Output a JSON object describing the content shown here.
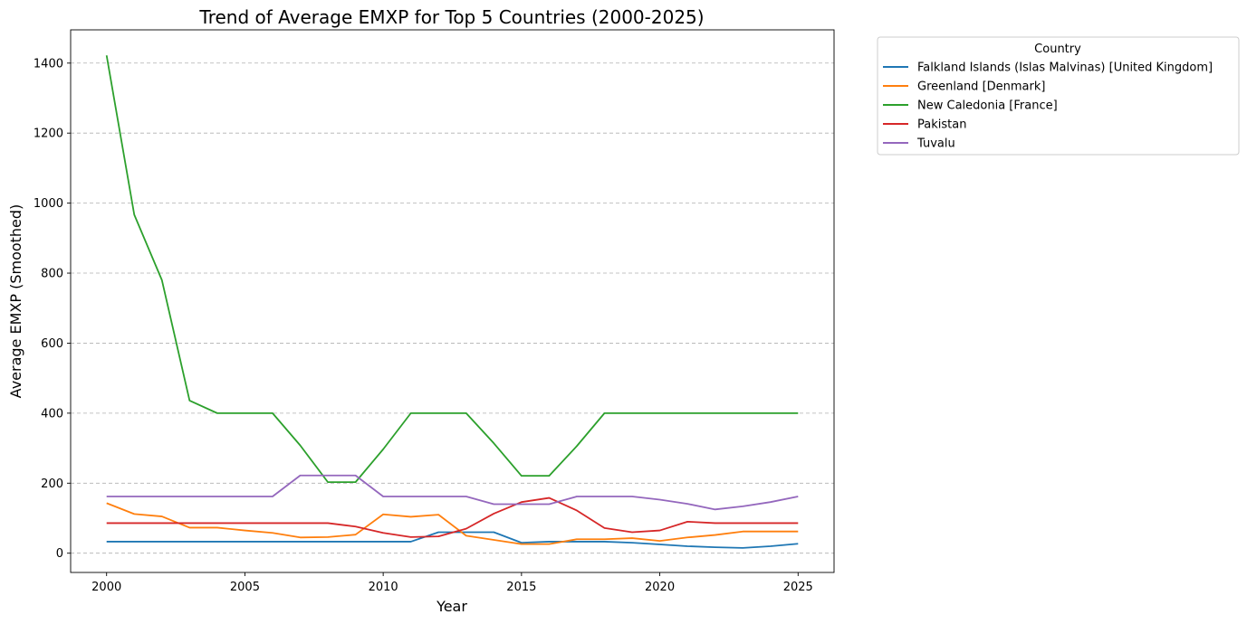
{
  "chart_data": {
    "type": "line",
    "title": "Trend of Average EMXP for Top 5 Countries (2000-2025)",
    "xlabel": "Year",
    "ylabel": "Average EMXP (Smoothed)",
    "xlim": [
      1998.7,
      2026.3
    ],
    "ylim": [
      -55,
      1495
    ],
    "xticks": [
      2000,
      2005,
      2010,
      2015,
      2020,
      2025
    ],
    "yticks": [
      0,
      200,
      400,
      600,
      800,
      1000,
      1200,
      1400
    ],
    "grid": "y-dashed",
    "legend": {
      "title": "Country",
      "placement": "outside-top-right"
    },
    "x": [
      2000,
      2001,
      2002,
      2003,
      2004,
      2005,
      2006,
      2007,
      2008,
      2009,
      2010,
      2011,
      2012,
      2013,
      2014,
      2015,
      2016,
      2017,
      2018,
      2019,
      2020,
      2021,
      2022,
      2023,
      2024,
      2025
    ],
    "series": [
      {
        "name": "Falkland Islands (Islas Malvinas) [United Kingdom]",
        "color": "#1f77b4",
        "values": [
          33,
          33,
          33,
          33,
          33,
          33,
          33,
          33,
          33,
          33,
          33,
          33,
          60,
          60,
          60,
          30,
          33,
          33,
          33,
          30,
          25,
          20,
          17,
          15,
          20,
          27
        ]
      },
      {
        "name": "Greenland [Denmark]",
        "color": "#ff7f0e",
        "values": [
          143,
          112,
          105,
          73,
          73,
          65,
          58,
          45,
          46,
          53,
          111,
          104,
          110,
          50,
          38,
          26,
          26,
          40,
          40,
          43,
          35,
          45,
          52,
          62,
          62,
          62
        ]
      },
      {
        "name": "New Caledonia [France]",
        "color": "#2ca02c",
        "values": [
          1422,
          967,
          780,
          436,
          400,
          400,
          400,
          308,
          203,
          203,
          297,
          400,
          400,
          400,
          314,
          221,
          221,
          306,
          400,
          400,
          400,
          400,
          400,
          400,
          400,
          400
        ]
      },
      {
        "name": "Pakistan",
        "color": "#d62728",
        "values": [
          86,
          86,
          86,
          86,
          86,
          86,
          86,
          86,
          86,
          76,
          58,
          46,
          48,
          70,
          113,
          146,
          158,
          122,
          72,
          60,
          65,
          90,
          86,
          86,
          86,
          86
        ]
      },
      {
        "name": "Tuvalu",
        "color": "#9467bd",
        "values": [
          162,
          162,
          162,
          162,
          162,
          162,
          162,
          222,
          222,
          222,
          162,
          162,
          162,
          162,
          140,
          140,
          140,
          162,
          162,
          162,
          153,
          141,
          125,
          134,
          146,
          162
        ]
      }
    ]
  }
}
